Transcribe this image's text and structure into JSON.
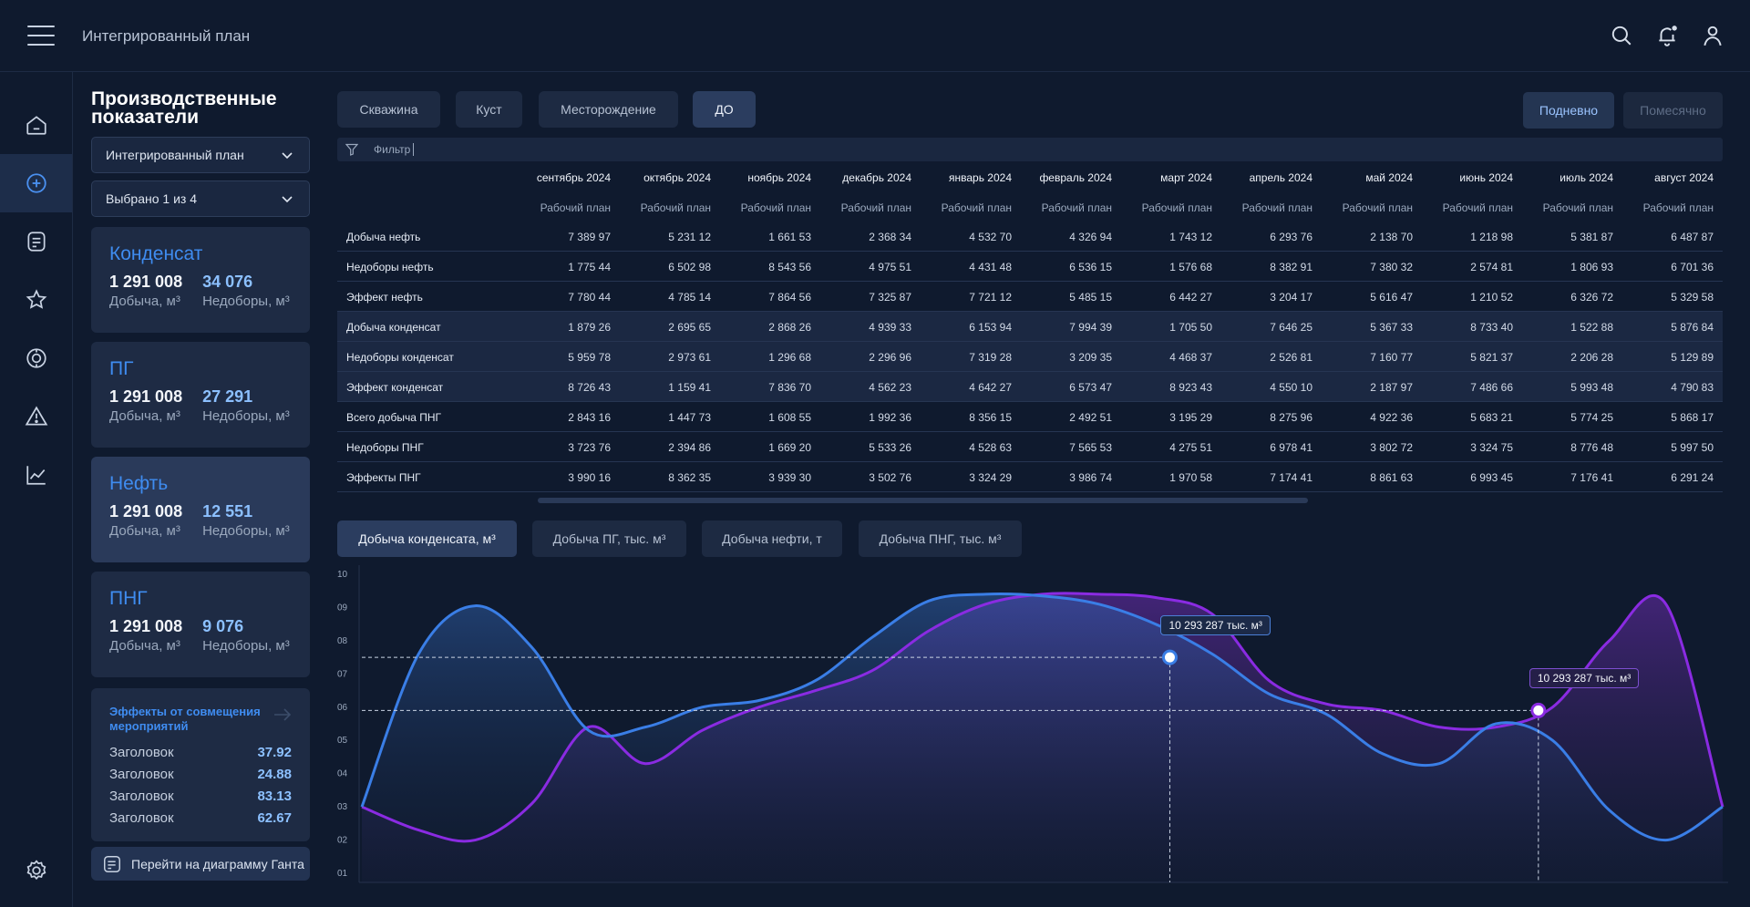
{
  "header": {
    "title": "Интегрированный план",
    "icons": [
      "menu-icon",
      "search-icon",
      "bell-icon",
      "user-icon"
    ]
  },
  "nav": {
    "items": [
      "home-icon",
      "plus-circle-icon",
      "document-icon",
      "star-icon",
      "target-icon",
      "warning-icon",
      "chart-icon",
      "settings-icon"
    ],
    "active": 1
  },
  "panel": {
    "title": "Производственные показатели",
    "select_plan": "Интегрированный план",
    "select_count": "Выбрано 1 из 4",
    "cards": [
      {
        "title": "Конденсат",
        "production": "1 291 008",
        "shortfall": "34 076",
        "production_label": "Добыча, м³",
        "shortfall_label": "Недоборы, м³"
      },
      {
        "title": "ПГ",
        "production": "1 291 008",
        "shortfall": "27 291",
        "production_label": "Добыча, м³",
        "shortfall_label": "Недоборы, м³"
      },
      {
        "title": "Нефть",
        "production": "1 291 008",
        "shortfall": "12 551",
        "production_label": "Добыча, м³",
        "shortfall_label": "Недоборы, м³"
      },
      {
        "title": "ПНГ",
        "production": "1 291 008",
        "shortfall": "9 076",
        "production_label": "Добыча, м³",
        "shortfall_label": "Недоборы, м³"
      }
    ],
    "active_card": 2,
    "effects": {
      "title": "Эффекты от совмещения мероприятий",
      "rows": [
        {
          "label": "Заголовок",
          "value": "37.92"
        },
        {
          "label": "Заголовок",
          "value": "24.88"
        },
        {
          "label": "Заголовок",
          "value": "83.13"
        },
        {
          "label": "Заголовок",
          "value": "62.67"
        }
      ]
    },
    "gantt_button": "Перейти на диаграмму Ганта"
  },
  "filters": {
    "tabs": [
      "Скважина",
      "Куст",
      "Месторождение",
      "ДО"
    ],
    "active_tab": 3,
    "periods": [
      "Подневно",
      "Помесячно"
    ],
    "active_period": 0,
    "filter_placeholder": "Фильтр"
  },
  "table": {
    "months": [
      "сентябрь 2024",
      "октябрь 2024",
      "ноябрь 2024",
      "декабрь 2024",
      "январь 2024",
      "февраль 2024",
      "март 2024",
      "апрель 2024",
      "май 2024",
      "июнь 2024",
      "июль 2024",
      "август 2024"
    ],
    "sub_header": "Рабочий план",
    "rows": [
      {
        "label": "Добыча нефть",
        "values": [
          "7 389 97",
          "5 231 12",
          "1 661 53",
          "2 368 34",
          "4 532 70",
          "4 326 94",
          "1 743 12",
          "6 293 76",
          "2 138 70",
          "1 218 98",
          "5 381 87",
          "6 487 87"
        ]
      },
      {
        "label": "Недоборы нефть",
        "values": [
          "1 775 44",
          "6 502 98",
          "8 543 56",
          "4 975 51",
          "4 431 48",
          "6 536 15",
          "1 576 68",
          "8 382 91",
          "7 380 32",
          "2 574 81",
          "1 806 93",
          "6 701 36"
        ]
      },
      {
        "label": "Эффект нефть",
        "values": [
          "7 780 44",
          "4 785 14",
          "7 864 56",
          "7 325 87",
          "7 721 12",
          "5 485 15",
          "6 442 27",
          "3 204 17",
          "5 616 47",
          "1 210 52",
          "6 326 72",
          "5 329 58"
        ]
      },
      {
        "label": "Добыча конденсат",
        "values": [
          "1 879 26",
          "2 695 65",
          "2 868 26",
          "4 939 33",
          "6 153 94",
          "7 994 39",
          "1 705 50",
          "7 646 25",
          "5 367 33",
          "8 733 40",
          "1 522 88",
          "5 876 84"
        ]
      },
      {
        "label": "Недоборы конденсат",
        "values": [
          "5 959 78",
          "2 973 61",
          "1 296 68",
          "2 296 96",
          "7 319 28",
          "3 209 35",
          "4 468 37",
          "2 526 81",
          "7 160 77",
          "5 821 37",
          "2 206 28",
          "5 129 89"
        ]
      },
      {
        "label": "Эффект конденсат",
        "values": [
          "8 726 43",
          "1 159 41",
          "7 836 70",
          "4 562 23",
          "4 642 27",
          "6 573 47",
          "8 923 43",
          "4 550 10",
          "2 187 97",
          "7 486 66",
          "5 993 48",
          "4 790 83"
        ]
      },
      {
        "label": "Всего добыча ПНГ",
        "values": [
          "2 843 16",
          "1 447 73",
          "1 608 55",
          "1 992 36",
          "8 356 15",
          "2 492 51",
          "3 195 29",
          "8 275 96",
          "4 922 36",
          "5 683 21",
          "5 774 25",
          "5 868 17"
        ]
      },
      {
        "label": "Недоборы ПНГ",
        "values": [
          "3 723 76",
          "2 394 86",
          "1 669 20",
          "5 533 26",
          "4 528 63",
          "7 565 53",
          "4 275 51",
          "6 978 41",
          "3 802 72",
          "3 324 75",
          "8 776 48",
          "5 997 50"
        ]
      },
      {
        "label": "Эффекты ПНГ",
        "values": [
          "3 990 16",
          "8 362 35",
          "3 939 30",
          "3 502 76",
          "3 324 29",
          "3 986 74",
          "1 970 58",
          "7 174 41",
          "8 861 63",
          "6 993 45",
          "7 176 41",
          "6 291 24"
        ]
      }
    ],
    "highlighted_rows": [
      3,
      4,
      5
    ]
  },
  "chart_tabs": {
    "labels": [
      "Добыча конденсата, м³",
      "Добыча ПГ, тыс. м³",
      "Добыча нефти, т",
      "Добыча ПНГ, тыс. м³"
    ],
    "active": 0
  },
  "chart_data": {
    "type": "area",
    "y_ticks": [
      "10",
      "09",
      "08",
      "07",
      "06",
      "05",
      "04",
      "03",
      "02",
      "01"
    ],
    "ylim": [
      1,
      10
    ],
    "x": [
      0,
      1,
      2,
      3,
      4,
      5,
      6,
      7,
      8,
      9,
      10,
      11,
      12,
      13,
      14,
      15,
      16,
      17,
      18,
      19,
      20,
      21,
      22,
      23,
      24
    ],
    "series": [
      {
        "color": "#3a7ee6",
        "values": [
          3.0,
          7.6,
          9.05,
          7.8,
          5.3,
          5.4,
          6.0,
          6.2,
          6.8,
          8.1,
          9.2,
          9.4,
          9.35,
          9.1,
          8.5,
          7.6,
          6.4,
          5.8,
          4.6,
          4.3,
          5.5,
          5.0,
          2.9,
          2.0,
          3.0
        ]
      },
      {
        "color": "#8a2be2",
        "values": [
          3.0,
          2.3,
          2.0,
          3.1,
          5.4,
          4.3,
          5.3,
          6.0,
          6.5,
          7.1,
          8.3,
          9.1,
          9.4,
          9.4,
          9.3,
          8.8,
          6.8,
          6.1,
          5.9,
          5.4,
          5.4,
          6.0,
          8.0,
          9.1,
          3.0
        ]
      }
    ],
    "tooltips": [
      {
        "text": "10 293 287 тыс. м³",
        "series": 0,
        "x": 14.25,
        "y": 7.5
      },
      {
        "text": "10 293 287 тыс. м³",
        "series": 1,
        "x": 20.75,
        "y": 5.9
      }
    ]
  }
}
